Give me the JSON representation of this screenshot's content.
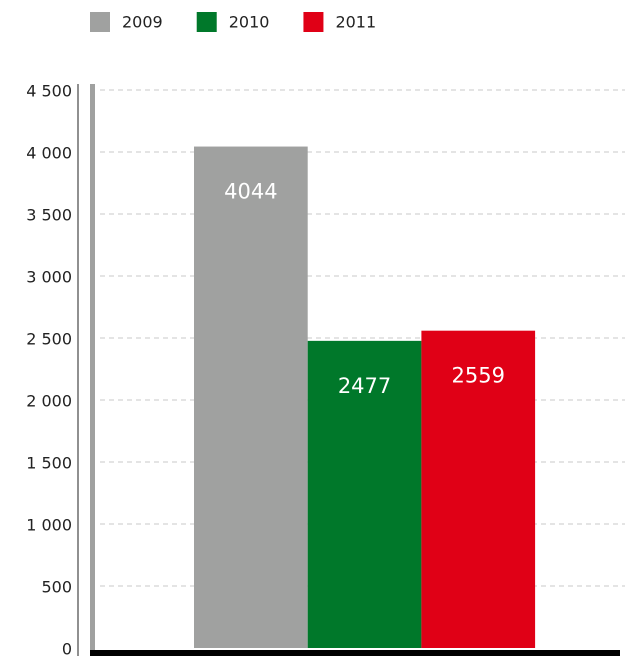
{
  "chart_data": {
    "type": "bar",
    "categories": [
      null
    ],
    "series": [
      {
        "name": "2009",
        "color": "#a0a1a0",
        "values": [
          4044
        ]
      },
      {
        "name": "2010",
        "color": "#00782a",
        "values": [
          2477
        ]
      },
      {
        "name": "2011",
        "color": "#e00016",
        "values": [
          2559
        ]
      }
    ],
    "ylim": [
      0,
      4500
    ],
    "yticks": [
      0,
      500,
      {
        "value": 1000,
        "label": "1 000"
      },
      {
        "value": 1500,
        "label": "1 500"
      },
      {
        "value": 2000,
        "label": "2 000"
      },
      {
        "value": 2500,
        "label": "2 500"
      },
      {
        "value": 3000,
        "label": "3 000"
      },
      {
        "value": 3500,
        "label": "3 500"
      },
      {
        "value": 4000,
        "label": "4 000"
      },
      {
        "value": 4500,
        "label": "4 500"
      }
    ],
    "grid": true,
    "legend": "top"
  }
}
